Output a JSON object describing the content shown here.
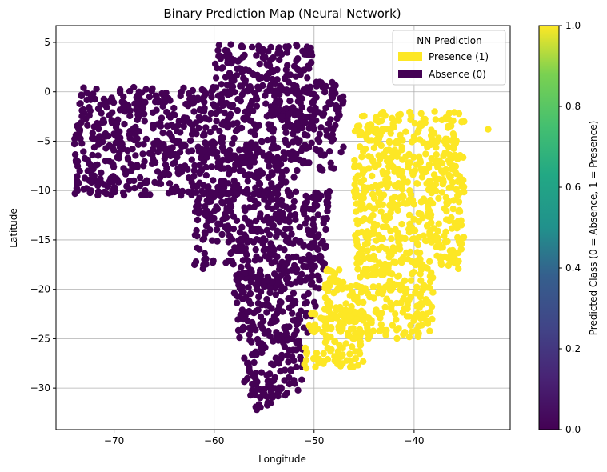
{
  "chart_data": {
    "type": "scatter",
    "title": "Binary Prediction Map (Neural Network)",
    "xlabel": "Longitude",
    "ylabel": "Latitude",
    "xlim": [
      -75.8,
      -30.4
    ],
    "ylim": [
      -34.2,
      6.7
    ],
    "xticks": [
      -70,
      -60,
      -50,
      -40
    ],
    "yticks": [
      5,
      0,
      -5,
      -10,
      -15,
      -20,
      -25,
      -30
    ],
    "grid": true,
    "legend": {
      "title": "NN Prediction",
      "placement": "top-right",
      "entries": [
        {
          "label": "Presence (1)",
          "color": "#fde725"
        },
        {
          "label": "Absence (0)",
          "color": "#440154"
        }
      ]
    },
    "colorbar": {
      "label": "Predicted Class (0 = Absence, 1 = Presence)",
      "range": [
        0,
        1
      ],
      "ticks": [
        "0.0",
        "0.2",
        "0.4",
        "0.6",
        "0.8",
        "1.0"
      ],
      "colormap": "viridis"
    },
    "series": [
      {
        "name": "Absence (0)",
        "color": "#440154",
        "regions": [
          {
            "lon": [
              -74,
              -52
            ],
            "lat": [
              -10.5,
              0.5
            ]
          },
          {
            "lon": [
              -60,
              -50
            ],
            "lat": [
              0,
              4.8
            ]
          },
          {
            "lon": [
              -52,
              -47
            ],
            "lat": [
              -8,
              1
            ]
          },
          {
            "lon": [
              -62,
              -48
            ],
            "lat": [
              -18,
              -10
            ]
          },
          {
            "lon": [
              -58,
              -49
            ],
            "lat": [
              -25,
              -18
            ]
          },
          {
            "lon": [
              -57,
              -51
            ],
            "lat": [
              -31,
              -25
            ]
          },
          {
            "lon": [
              -56,
              -54
            ],
            "lat": [
              -32.3,
              -30
            ]
          }
        ]
      },
      {
        "name": "Presence (1)",
        "color": "#fde725",
        "regions": [
          {
            "lon": [
              -46,
              -35
            ],
            "lat": [
              -18,
              -2
            ]
          },
          {
            "lon": [
              -49,
              -38
            ],
            "lat": [
              -25,
              -18
            ]
          },
          {
            "lon": [
              -51,
              -45
            ],
            "lat": [
              -28,
              -22
            ]
          }
        ],
        "outliers": [
          {
            "lon": -32.6,
            "lat": -3.8
          }
        ]
      }
    ]
  }
}
